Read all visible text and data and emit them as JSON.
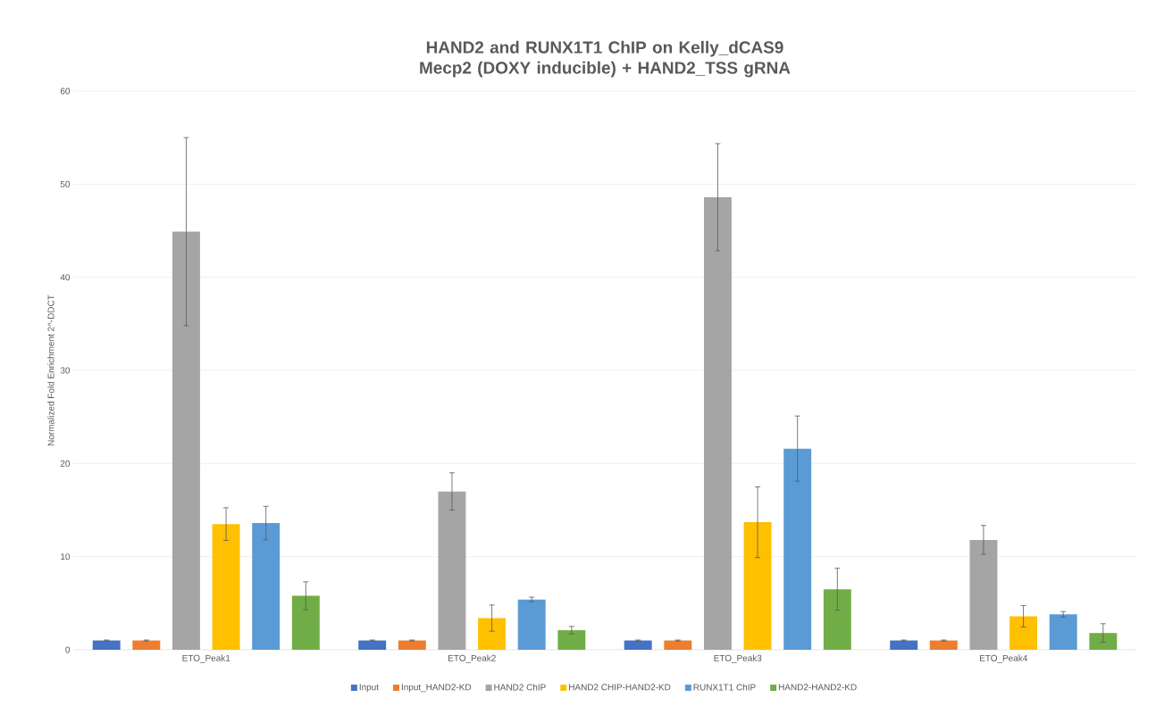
{
  "chart_data": {
    "type": "bar",
    "title": "HAND2 and RUNX1T1 ChIP on Kelly_dCAS9 Mecp2 (DOXY inducible) + HAND2_TSS gRNA",
    "ylabel": "Normalized Fold Enrichment 2^-DDCT",
    "categories": [
      "ETO_Peak1",
      "ETO_Peak2",
      "ETO_Peak3",
      "ETO_Peak4"
    ],
    "series": [
      {
        "name": "Input",
        "color": "#4472c4",
        "values": [
          1,
          1,
          1,
          1
        ],
        "errors": [
          0.05,
          0.05,
          0.05,
          0.05
        ]
      },
      {
        "name": "Input_HAND2-KD",
        "color": "#ed7d31",
        "values": [
          1,
          1,
          1,
          1
        ],
        "errors": [
          0.05,
          0.05,
          0.05,
          0.05
        ]
      },
      {
        "name": "HAND2 ChIP",
        "color": "#a5a5a5",
        "values": [
          44.9,
          17.0,
          48.6,
          11.8
        ],
        "errors": [
          10.1,
          2.0,
          5.75,
          1.55
        ]
      },
      {
        "name": "HAND2 CHIP-HAND2-KD",
        "color": "#ffc000",
        "values": [
          13.5,
          3.4,
          13.7,
          3.6
        ],
        "errors": [
          1.75,
          1.4,
          3.8,
          1.15
        ]
      },
      {
        "name": "RUNX1T1 ChIP",
        "color": "#5b9bd5",
        "values": [
          13.6,
          5.4,
          21.6,
          3.8
        ],
        "errors": [
          1.8,
          0.25,
          3.5,
          0.3
        ]
      },
      {
        "name": "HAND2-HAND2-KD",
        "color": "#70ad47",
        "values": [
          5.8,
          2.1,
          6.5,
          1.8
        ],
        "errors": [
          1.5,
          0.4,
          2.25,
          1.0
        ]
      }
    ],
    "ylim": [
      0,
      60
    ],
    "yticks": [
      0,
      10,
      20,
      30,
      40,
      50,
      60
    ],
    "grid": "y",
    "legend": "bottom"
  }
}
